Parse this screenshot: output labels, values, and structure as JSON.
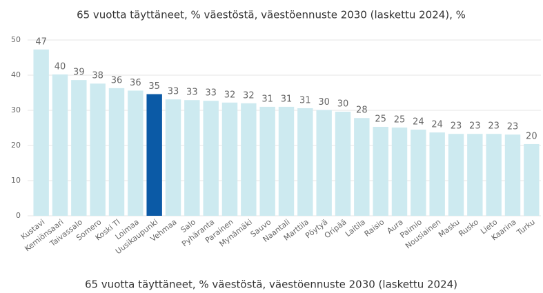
{
  "chart_data": {
    "type": "bar",
    "title": "65 vuotta täyttäneet, % väestöstä, väestöennuste 2030 (laskettu 2024), %",
    "xlabel": "65 vuotta täyttäneet, % väestöstä, väestöennuste 2030 (laskettu 2024)",
    "categories": [
      "Kustavi",
      "Kemiönsaari",
      "Taivassalo",
      "Somero",
      "Koski Tl",
      "Loimaa",
      "Uusikaupunki",
      "Vehmaa",
      "Salo",
      "Pyhäranta",
      "Parainen",
      "Mynämäki",
      "Sauvo",
      "Naantali",
      "Marttila",
      "Pöytyä",
      "Oripää",
      "Laitila",
      "Raisio",
      "Aura",
      "Paimio",
      "Nousiainen",
      "Masku",
      "Rusko",
      "Lieto",
      "Kaarina",
      "Turku"
    ],
    "values": [
      47.3,
      40.2,
      38.6,
      37.6,
      36.3,
      35.6,
      34.6,
      33.1,
      32.9,
      32.7,
      32.2,
      32.0,
      31.0,
      31.0,
      30.6,
      30.1,
      29.6,
      27.8,
      25.3,
      25.1,
      24.5,
      23.7,
      23.3,
      23.3,
      23.3,
      23.1,
      20.4
    ],
    "value_labels": [
      "47",
      "40",
      "39",
      "38",
      "36",
      "36",
      "35",
      "33",
      "33",
      "33",
      "32",
      "32",
      "31",
      "31",
      "31",
      "30",
      "30",
      "28",
      "25",
      "25",
      "24",
      "24",
      "23",
      "23",
      "23",
      "23",
      "20"
    ],
    "colors": [
      "#cdeaf0",
      "#cdeaf0",
      "#cdeaf0",
      "#cdeaf0",
      "#cdeaf0",
      "#cdeaf0",
      "#0b5aa6",
      "#cdeaf0",
      "#cdeaf0",
      "#cdeaf0",
      "#cdeaf0",
      "#cdeaf0",
      "#cdeaf0",
      "#cdeaf0",
      "#cdeaf0",
      "#cdeaf0",
      "#cdeaf0",
      "#cdeaf0",
      "#cdeaf0",
      "#cdeaf0",
      "#cdeaf0",
      "#cdeaf0",
      "#cdeaf0",
      "#cdeaf0",
      "#cdeaf0",
      "#cdeaf0",
      "#cdeaf0"
    ],
    "ylim": [
      0,
      50
    ],
    "yticks": [
      0,
      10,
      20,
      30,
      40,
      50
    ],
    "grid": true
  }
}
